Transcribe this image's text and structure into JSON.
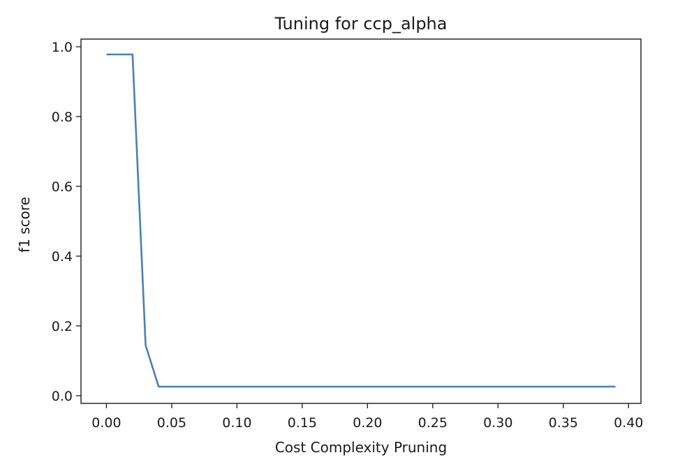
{
  "chart_data": {
    "type": "line",
    "title": "Tuning for ccp_alpha",
    "xlabel": "Cost Complexity Pruning",
    "ylabel": "f1 score",
    "xlim": [
      -0.0195,
      0.4095
    ],
    "ylim": [
      -0.022,
      1.022
    ],
    "xticks": [
      0.0,
      0.05,
      0.1,
      0.15,
      0.2,
      0.25,
      0.3,
      0.35,
      0.4
    ],
    "xtick_labels": [
      "0.00",
      "0.05",
      "0.10",
      "0.15",
      "0.20",
      "0.25",
      "0.30",
      "0.35",
      "0.40"
    ],
    "yticks": [
      0.0,
      0.2,
      0.4,
      0.6,
      0.8,
      1.0
    ],
    "ytick_labels": [
      "0.0",
      "0.2",
      "0.4",
      "0.6",
      "0.8",
      "1.0"
    ],
    "grid": false,
    "series": [
      {
        "color": "#4a7fb8",
        "x": [
          0.0,
          0.01,
          0.02,
          0.03,
          0.04,
          0.05,
          0.06,
          0.07,
          0.08,
          0.09,
          0.1,
          0.11,
          0.12,
          0.13,
          0.14,
          0.15,
          0.16,
          0.17,
          0.18,
          0.19,
          0.2,
          0.21,
          0.22,
          0.23,
          0.24,
          0.25,
          0.26,
          0.27,
          0.28,
          0.29,
          0.3,
          0.31,
          0.32,
          0.33,
          0.34,
          0.35,
          0.36,
          0.37,
          0.38,
          0.39
        ],
        "y": [
          0.978,
          0.978,
          0.978,
          0.145,
          0.026,
          0.026,
          0.026,
          0.026,
          0.026,
          0.026,
          0.026,
          0.026,
          0.026,
          0.026,
          0.026,
          0.026,
          0.026,
          0.026,
          0.026,
          0.026,
          0.026,
          0.026,
          0.026,
          0.026,
          0.026,
          0.026,
          0.026,
          0.026,
          0.026,
          0.026,
          0.026,
          0.026,
          0.026,
          0.026,
          0.026,
          0.026,
          0.026,
          0.026,
          0.026,
          0.026
        ]
      }
    ]
  }
}
